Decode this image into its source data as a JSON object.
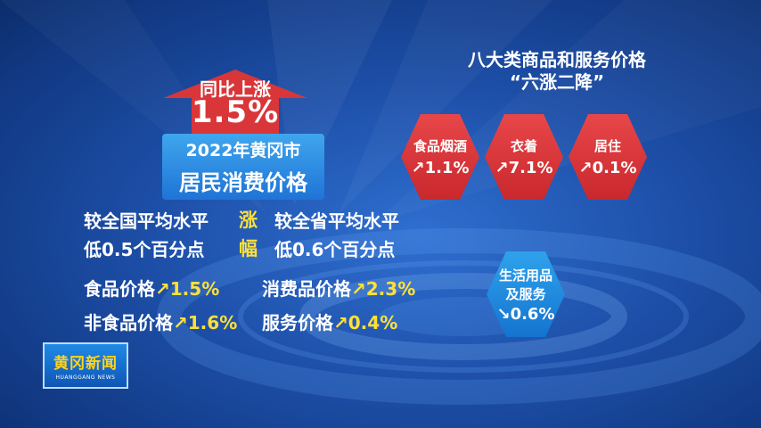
{
  "headline": {
    "arrow_label": "同比上涨",
    "arrow_value": "1.5%",
    "title_line1": "2022年黄冈市",
    "title_line2": "居民消费价格"
  },
  "comparison": {
    "left_line1": "较全国平均水平",
    "left_line2": "低0.5个百分点",
    "middle_line1": "涨",
    "middle_line2": "幅",
    "right_line1": "较全省平均水平",
    "right_line2": "低0.6个百分点"
  },
  "indices": [
    {
      "label": "食品价格",
      "value": "↗1.5%"
    },
    {
      "label": "消费品价格",
      "value": "↗2.3%"
    },
    {
      "label": "非食品价格",
      "value": "↗1.6%"
    },
    {
      "label": "服务价格",
      "value": "↗0.4%"
    }
  ],
  "categories_heading": {
    "line1": "八大类商品和服务价格",
    "line2": "“六涨二降”"
  },
  "categories": [
    {
      "name": "食品烟酒",
      "value": "↗1.1%",
      "color": "#d9363a"
    },
    {
      "name": "衣着",
      "value": "↗7.1%",
      "color": "#d9363a"
    },
    {
      "name": "居住",
      "value": "↗0.1%",
      "color": "#d9363a"
    },
    {
      "name_line1": "生活用品",
      "name_line2": "及服务",
      "value": "↘0.6%",
      "color": "#1f86dd"
    }
  ],
  "logo": {
    "name": "黄冈新闻",
    "subtitle": "HUANGGANG NEWS"
  },
  "colors": {
    "background": "#1d4fa8",
    "highlight": "#ffe03a",
    "arrow": "#d9363a",
    "title_box": "#2a8ae3"
  }
}
